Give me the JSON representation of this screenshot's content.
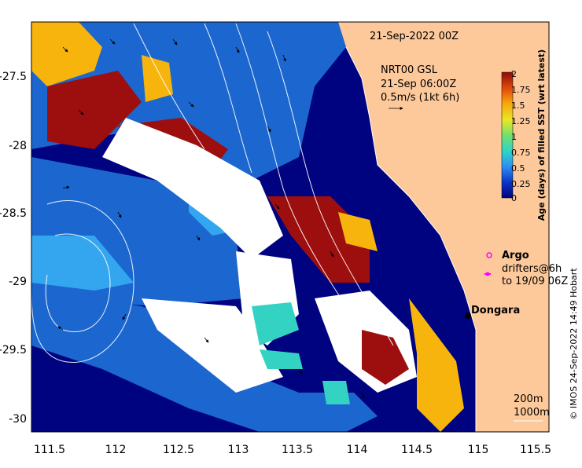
{
  "map": {
    "date_label": "21-Sep-2022 00Z",
    "current_model": "NRT00 GSL",
    "current_time": "21-Sep 06:00Z",
    "vector_scale": "0.5m/s (1kt 6h)",
    "lon_ticks": [
      "111.5",
      "112",
      "112.5",
      "113",
      "113.5",
      "114",
      "114.5",
      "115",
      "115.5"
    ],
    "lat_ticks": [
      "-27.5",
      "-28",
      "-28.5",
      "-29",
      "-29.5",
      "-30"
    ],
    "place": "Dongara",
    "argo_label": "Argo",
    "drifters_line1": "drifters@6h",
    "drifters_line2": "to 19/09 06Z",
    "depth_200": "200m",
    "depth_1000": "1000m",
    "credit": "© IMOS 24-Sep-2022 14:49 Hobart"
  },
  "colorbar": {
    "title": "Age (days) of filled SST (wrt latest)",
    "ticks": [
      "2",
      "1.75",
      "1.5",
      "1.25",
      "1",
      "0.75",
      "0.5",
      "0.25",
      "0"
    ]
  },
  "colors": {
    "land": "#fdc99b",
    "deep_ocean": "#00037f",
    "mid_blue": "#1c67cf",
    "light_blue": "#33a6ef",
    "cyan": "#34d2c2",
    "orange": "#f7b40c",
    "dark_red": "#9d0f0e",
    "no_data": "#ffffff"
  }
}
